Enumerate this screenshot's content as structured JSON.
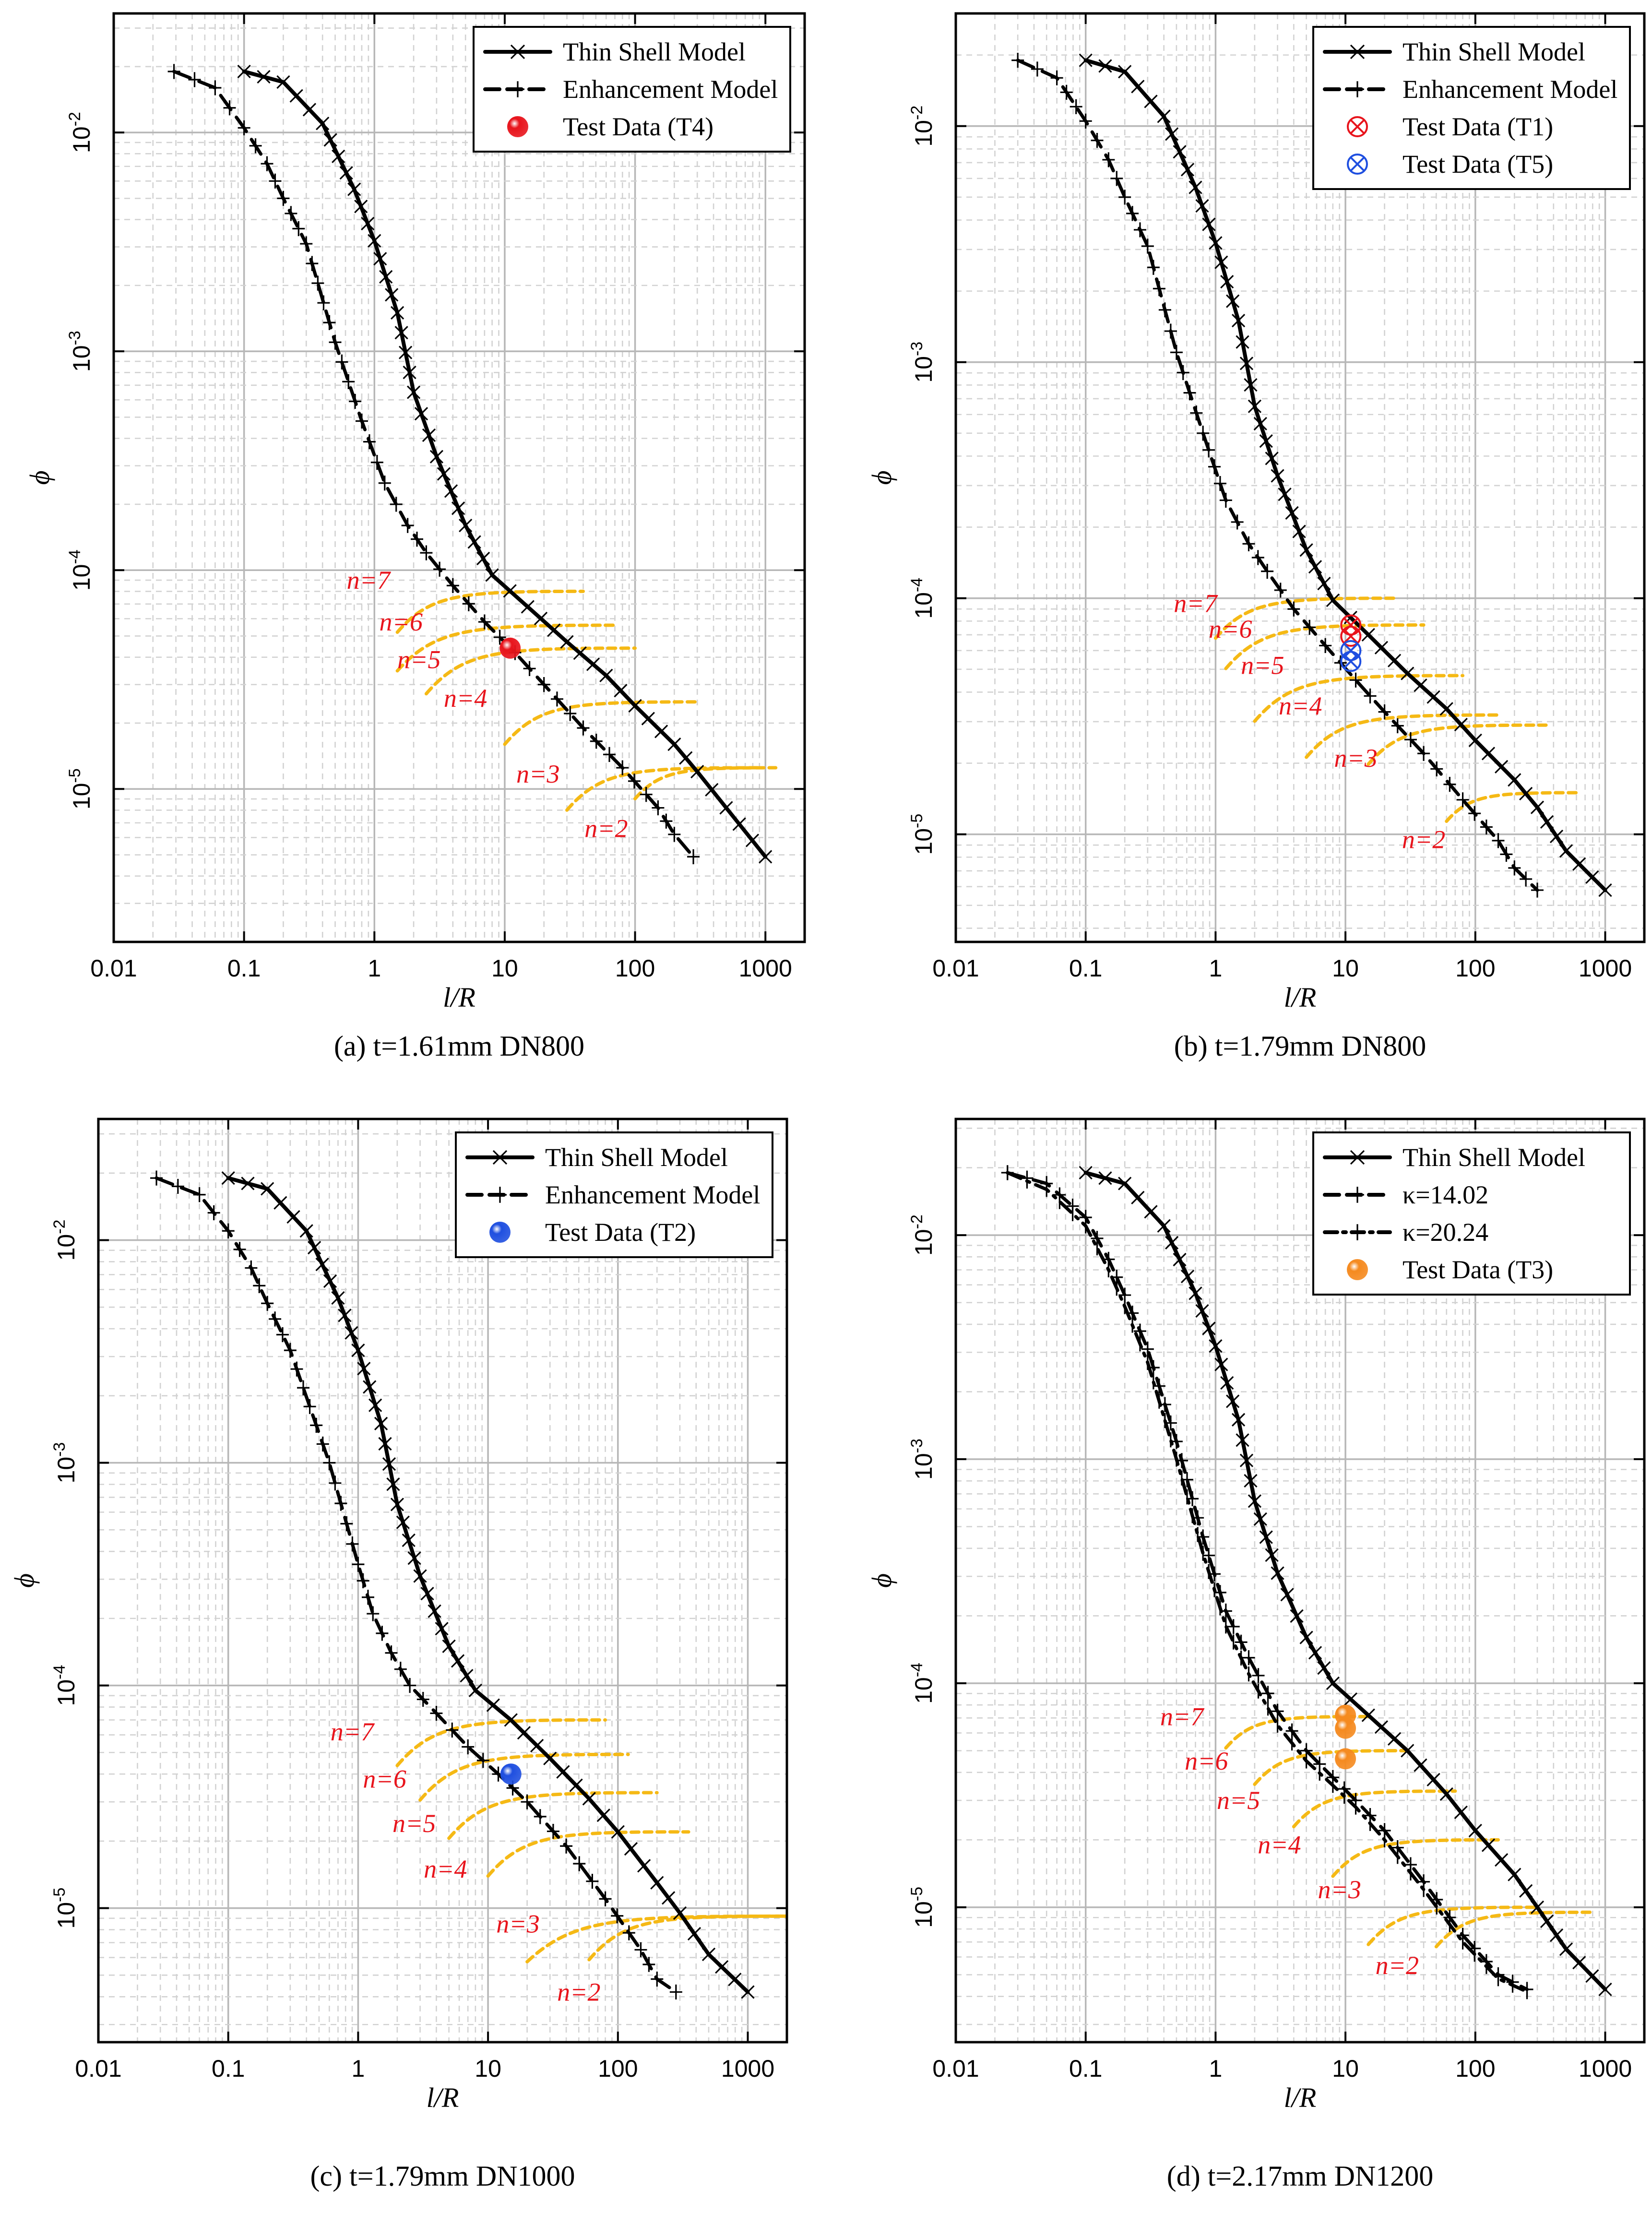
{
  "chart_data": [
    {
      "type": "line",
      "scale": "log-log",
      "caption": "(a) t=1.61mm DN800",
      "xlabel": "l/R",
      "ylabel": "ϕ",
      "xlim": [
        0.01,
        2000
      ],
      "ylim": [
        2e-06,
        0.035
      ],
      "x_ticks": [
        0.01,
        0.1,
        1,
        10,
        100,
        1000
      ],
      "x_tick_labels": [
        "0.01",
        "0.1",
        "1",
        "10",
        "100",
        "1000"
      ],
      "y_ticks": [
        1e-05,
        0.0001,
        0.001,
        0.01
      ],
      "y_tick_labels": [
        {
          "base": "10",
          "exp": "-5"
        },
        {
          "base": "10",
          "exp": "-4"
        },
        {
          "base": "10",
          "exp": "-3"
        },
        {
          "base": "10",
          "exp": "-2"
        }
      ],
      "grid": true,
      "legend": {
        "position": "top-right",
        "entries": [
          {
            "label": "Thin Shell Model",
            "kind": "solid-x"
          },
          {
            "label": "Enhancement Model",
            "kind": "dash-plus"
          },
          {
            "label": "Test Data (T4)",
            "kind": "ball",
            "color": "#e8141c"
          }
        ]
      },
      "series": [
        {
          "name": "Thin Shell Model",
          "kind": "solid-x",
          "x": [
            0.1,
            0.2,
            0.4,
            0.7,
            1.0,
            1.5,
            2.0,
            3.0,
            5.0,
            8.0,
            15,
            30,
            60,
            100,
            200,
            300,
            500,
            1000
          ],
          "y": [
            0.019,
            0.017,
            0.011,
            0.0055,
            0.0032,
            0.0015,
            0.00065,
            0.00033,
            0.00016,
            9.5e-05,
            6.8e-05,
            4.7e-05,
            3.3e-05,
            2.4e-05,
            1.6e-05,
            1.2e-05,
            8.2e-06,
            4.9e-06
          ]
        },
        {
          "name": "Enhancement Model",
          "kind": "dash-plus",
          "x": [
            0.029,
            0.06,
            0.1,
            0.15,
            0.2,
            0.3,
            0.5,
            0.8,
            1.2,
            1.8,
            2.5,
            4,
            7,
            12,
            20,
            40,
            80,
            150,
            200,
            280
          ],
          "y": [
            0.019,
            0.016,
            0.0105,
            0.0072,
            0.005,
            0.0031,
            0.0011,
            0.00048,
            0.00025,
            0.00016,
            0.00012,
            8.5e-05,
            5.8e-05,
            4.2e-05,
            3e-05,
            1.9e-05,
            1.25e-05,
            8.2e-06,
            6.2e-06,
            4.9e-06
          ]
        }
      ],
      "test_points": [
        {
          "label": "T4",
          "x": 11,
          "y": 4.4e-05,
          "color": "#e8141c"
        }
      ],
      "mode_lines": [
        {
          "label": "n=7",
          "y": 8e-05,
          "x_start": 1.5,
          "x_end": 40,
          "label_x": 0.9,
          "label_y": 9e-05
        },
        {
          "label": "n=6",
          "y": 5.6e-05,
          "x_start": 1.5,
          "x_end": 70,
          "label_x": 1.6,
          "label_y": 5.8e-05
        },
        {
          "label": "n=5",
          "y": 4.4e-05,
          "x_start": 2.5,
          "x_end": 100,
          "label_x": 2.2,
          "label_y": 3.9e-05
        },
        {
          "label": "n=4",
          "y": 2.5e-05,
          "x_start": 10,
          "x_end": 300,
          "label_x": 5,
          "label_y": 2.6e-05
        },
        {
          "label": "n=3",
          "y": 1.25e-05,
          "x_start": 30,
          "x_end": 900,
          "label_x": 18,
          "label_y": 1.17e-05
        },
        {
          "label": "n=2",
          "y": 1.25e-05,
          "x_start": 100,
          "x_end": 1200,
          "label_x": 60,
          "label_y": 6.6e-06
        }
      ]
    },
    {
      "type": "line",
      "scale": "log-log",
      "caption": "(b) t=1.79mm DN800",
      "xlabel": "l/R",
      "ylabel": "ϕ",
      "xlim": [
        0.01,
        2000
      ],
      "ylim": [
        3.5e-06,
        0.03
      ],
      "x_ticks": [
        0.01,
        0.1,
        1,
        10,
        100,
        1000
      ],
      "x_tick_labels": [
        "0.01",
        "0.1",
        "1",
        "10",
        "100",
        "1000"
      ],
      "y_ticks": [
        1e-05,
        0.0001,
        0.001,
        0.01
      ],
      "y_tick_labels": [
        {
          "base": "10",
          "exp": "-5"
        },
        {
          "base": "10",
          "exp": "-4"
        },
        {
          "base": "10",
          "exp": "-3"
        },
        {
          "base": "10",
          "exp": "-2"
        }
      ],
      "grid": true,
      "legend": {
        "position": "top-right",
        "entries": [
          {
            "label": "Thin Shell Model",
            "kind": "solid-x"
          },
          {
            "label": "Enhancement Model",
            "kind": "dash-plus"
          },
          {
            "label": "Test Data (T1)",
            "kind": "crossed-circle",
            "color": "#e8141c"
          },
          {
            "label": "Test Data (T5)",
            "kind": "crossed-circle",
            "color": "#1f4fe0"
          }
        ]
      },
      "series": [
        {
          "name": "Thin Shell Model",
          "kind": "solid-x",
          "x": [
            0.1,
            0.2,
            0.4,
            0.7,
            1.0,
            1.5,
            2.0,
            3.0,
            5.0,
            8.0,
            15,
            30,
            60,
            100,
            200,
            300,
            500,
            1000
          ],
          "y": [
            0.019,
            0.017,
            0.011,
            0.0055,
            0.0032,
            0.0015,
            0.00065,
            0.00033,
            0.00016,
            9.8e-05,
            7e-05,
            4.8e-05,
            3.4e-05,
            2.5e-05,
            1.7e-05,
            1.3e-05,
            8.5e-06,
            5.8e-06
          ]
        },
        {
          "name": "Enhancement Model",
          "kind": "dash-plus",
          "x": [
            0.03,
            0.06,
            0.1,
            0.15,
            0.2,
            0.3,
            0.5,
            0.8,
            1.2,
            1.8,
            2.5,
            4,
            7,
            12,
            20,
            40,
            80,
            150,
            200,
            300
          ],
          "y": [
            0.019,
            0.016,
            0.0105,
            0.0072,
            0.005,
            0.0031,
            0.0011,
            0.0005,
            0.00026,
            0.00017,
            0.00013,
            9e-05,
            6.3e-05,
            4.5e-05,
            3.3e-05,
            2.2e-05,
            1.4e-05,
            9.4e-06,
            7.2e-06,
            5.8e-06
          ]
        }
      ],
      "test_points": [
        {
          "label": "T1",
          "x": 11,
          "y": 7.7e-05,
          "color": "#e8141c"
        },
        {
          "label": "T1",
          "x": 11,
          "y": 6.9e-05,
          "color": "#e8141c"
        },
        {
          "label": "T5",
          "x": 11,
          "y": 6e-05,
          "color": "#1f4fe0"
        },
        {
          "label": "T5",
          "x": 11,
          "y": 5.4e-05,
          "color": "#1f4fe0"
        }
      ],
      "mode_lines": [
        {
          "label": "n=7",
          "y": 0.0001,
          "x_start": 1.0,
          "x_end": 25,
          "label_x": 0.7,
          "label_y": 9.5e-05
        },
        {
          "label": "n=6",
          "y": 7.7e-05,
          "x_start": 1.2,
          "x_end": 40,
          "label_x": 1.3,
          "label_y": 7.4e-05
        },
        {
          "label": "n=5",
          "y": 4.7e-05,
          "x_start": 2.0,
          "x_end": 80,
          "label_x": 2.3,
          "label_y": 5.2e-05
        },
        {
          "label": "n=4",
          "y": 3.2e-05,
          "x_start": 5,
          "x_end": 150,
          "label_x": 4.5,
          "label_y": 3.5e-05
        },
        {
          "label": "n=3",
          "y": 2.9e-05,
          "x_start": 15,
          "x_end": 350,
          "label_x": 12,
          "label_y": 2.1e-05
        },
        {
          "label": "n=2",
          "y": 1.5e-05,
          "x_start": 60,
          "x_end": 600,
          "label_x": 40,
          "label_y": 9.5e-06
        }
      ]
    },
    {
      "type": "line",
      "scale": "log-log",
      "caption": "(c) t=1.79mm DN1000",
      "xlabel": "l/R",
      "ylabel": "ϕ",
      "xlim": [
        0.01,
        2000
      ],
      "ylim": [
        2.5e-06,
        0.035
      ],
      "x_ticks": [
        0.01,
        0.1,
        1,
        10,
        100,
        1000
      ],
      "x_tick_labels": [
        "0.01",
        "0.1",
        "1",
        "10",
        "100",
        "1000"
      ],
      "y_ticks": [
        1e-05,
        0.0001,
        0.001,
        0.01
      ],
      "y_tick_labels": [
        {
          "base": "10",
          "exp": "-5"
        },
        {
          "base": "10",
          "exp": "-4"
        },
        {
          "base": "10",
          "exp": "-3"
        },
        {
          "base": "10",
          "exp": "-2"
        }
      ],
      "grid": true,
      "legend": {
        "position": "top-right",
        "entries": [
          {
            "label": "Thin Shell Model",
            "kind": "solid-x"
          },
          {
            "label": "Enhancement Model",
            "kind": "dash-plus"
          },
          {
            "label": "Test Data (T2)",
            "kind": "ball",
            "color": "#1f4fe0"
          }
        ]
      },
      "series": [
        {
          "name": "Thin Shell Model",
          "kind": "solid-x",
          "x": [
            0.1,
            0.2,
            0.4,
            0.7,
            1.0,
            1.5,
            2.0,
            3.0,
            5.0,
            8.0,
            15,
            30,
            60,
            100,
            200,
            300,
            500,
            1000
          ],
          "y": [
            0.019,
            0.017,
            0.011,
            0.0055,
            0.0032,
            0.0015,
            0.00065,
            0.00031,
            0.00015,
            9.5e-05,
            7e-05,
            4.7e-05,
            3.1e-05,
            2.2e-05,
            1.3e-05,
            9.5e-06,
            6.2e-06,
            4.2e-06
          ]
        },
        {
          "name": "Enhancement Model",
          "kind": "dash-plus",
          "x": [
            0.028,
            0.06,
            0.1,
            0.15,
            0.2,
            0.3,
            0.6,
            1.0,
            1.3,
            1.8,
            2.5,
            4,
            7,
            12,
            20,
            40,
            80,
            150,
            200,
            280
          ],
          "y": [
            0.019,
            0.016,
            0.011,
            0.0075,
            0.0052,
            0.0032,
            0.001,
            0.00035,
            0.00021,
            0.00014,
            0.0001,
            7.5e-05,
            5.3e-05,
            4e-05,
            3e-05,
            1.9e-05,
            1.1e-05,
            6.5e-06,
            4.8e-06,
            4.2e-06
          ]
        }
      ],
      "test_points": [
        {
          "label": "T2",
          "x": 15,
          "y": 4e-05,
          "color": "#1f4fe0"
        }
      ],
      "mode_lines": [
        {
          "label": "n=7",
          "y": 7e-05,
          "x_start": 2.0,
          "x_end": 80,
          "label_x": 0.9,
          "label_y": 6.2e-05
        },
        {
          "label": "n=6",
          "y": 4.9e-05,
          "x_start": 3.0,
          "x_end": 120,
          "label_x": 1.6,
          "label_y": 3.8e-05
        },
        {
          "label": "n=5",
          "y": 3.3e-05,
          "x_start": 5,
          "x_end": 200,
          "label_x": 2.7,
          "label_y": 2.4e-05
        },
        {
          "label": "n=4",
          "y": 2.2e-05,
          "x_start": 10,
          "x_end": 350,
          "label_x": 4.7,
          "label_y": 1.5e-05
        },
        {
          "label": "n=3",
          "y": 9.2e-06,
          "x_start": 20,
          "x_end": 2000,
          "label_x": 17,
          "label_y": 8.5e-06
        },
        {
          "label": "n=2",
          "y": 9.2e-06,
          "x_start": 60,
          "x_end": 2000,
          "label_x": 50,
          "label_y": 4.2e-06
        }
      ]
    },
    {
      "type": "line",
      "scale": "log-log",
      "caption": "(d) t=2.17mm DN1200",
      "xlabel": "l/R",
      "ylabel": "ϕ",
      "xlim": [
        0.01,
        2000
      ],
      "ylim": [
        2.5e-06,
        0.033
      ],
      "x_ticks": [
        0.01,
        0.1,
        1,
        10,
        100,
        1000
      ],
      "x_tick_labels": [
        "0.01",
        "0.1",
        "1",
        "10",
        "100",
        "1000"
      ],
      "y_ticks": [
        1e-05,
        0.0001,
        0.001,
        0.01
      ],
      "y_tick_labels": [
        {
          "base": "10",
          "exp": "-5"
        },
        {
          "base": "10",
          "exp": "-4"
        },
        {
          "base": "10",
          "exp": "-3"
        },
        {
          "base": "10",
          "exp": "-2"
        }
      ],
      "grid": true,
      "legend": {
        "position": "top-right",
        "entries": [
          {
            "label": "Thin Shell Model",
            "kind": "solid-x"
          },
          {
            "label": "κ=14.02",
            "kind": "dash-plus"
          },
          {
            "label": "κ=20.24",
            "kind": "dashdot-bar"
          },
          {
            "label": "Test Data (T3)",
            "kind": "ball",
            "color": "#f58a1f"
          }
        ]
      },
      "series": [
        {
          "name": "Thin Shell Model",
          "kind": "solid-x",
          "x": [
            0.1,
            0.2,
            0.4,
            0.7,
            1.0,
            1.5,
            2.0,
            3.0,
            5.0,
            8.0,
            15,
            30,
            60,
            100,
            200,
            300,
            500,
            1000
          ],
          "y": [
            0.019,
            0.017,
            0.011,
            0.0055,
            0.0032,
            0.0015,
            0.00065,
            0.00031,
            0.00016,
            0.0001,
            7.2e-05,
            5e-05,
            3.2e-05,
            2.2e-05,
            1.4e-05,
            1e-05,
            6.5e-06,
            4.3e-06
          ]
        },
        {
          "name": "κ=14.02",
          "kind": "dash-plus",
          "x": [
            0.025,
            0.05,
            0.1,
            0.15,
            0.2,
            0.3,
            0.5,
            0.8,
            1.2,
            1.8,
            3,
            5,
            8,
            12,
            20,
            40,
            80,
            150,
            250
          ],
          "y": [
            0.019,
            0.017,
            0.012,
            0.0078,
            0.0054,
            0.0031,
            0.0012,
            0.00045,
            0.00021,
            0.00013,
            7.5e-05,
            5e-05,
            3.8e-05,
            3e-05,
            2.2e-05,
            1.3e-05,
            7.5e-06,
            5e-06,
            4.3e-06
          ]
        },
        {
          "name": "κ=20.24",
          "kind": "dashdot-bar",
          "x": [
            0.025,
            0.05,
            0.1,
            0.15,
            0.2,
            0.3,
            0.5,
            0.8,
            1.2,
            1.8,
            3,
            5,
            8,
            12,
            20,
            40,
            80,
            150,
            250
          ],
          "y": [
            0.019,
            0.016,
            0.011,
            0.007,
            0.0048,
            0.0027,
            0.001,
            0.00038,
            0.00018,
            0.00011,
            6.5e-05,
            4.5e-05,
            3.5e-05,
            2.8e-05,
            2e-05,
            1.2e-05,
            7e-06,
            4.8e-06,
            4.2e-06
          ]
        }
      ],
      "test_points": [
        {
          "label": "T3",
          "x": 10,
          "y": 7.2e-05,
          "color": "#f58a1f"
        },
        {
          "label": "T3",
          "x": 10,
          "y": 6.3e-05,
          "color": "#f58a1f"
        },
        {
          "label": "T3",
          "x": 10,
          "y": 4.6e-05,
          "color": "#f58a1f"
        }
      ],
      "mode_lines": [
        {
          "label": "n=7",
          "y": 7.1e-05,
          "x_start": 1.2,
          "x_end": 15,
          "label_x": 0.55,
          "label_y": 7.1e-05
        },
        {
          "label": "n=6",
          "y": 5e-05,
          "x_start": 2.0,
          "x_end": 30,
          "label_x": 0.85,
          "label_y": 4.5e-05
        },
        {
          "label": "n=5",
          "y": 3.3e-05,
          "x_start": 4,
          "x_end": 70,
          "label_x": 1.5,
          "label_y": 3e-05
        },
        {
          "label": "n=4",
          "y": 2e-05,
          "x_start": 8,
          "x_end": 150,
          "label_x": 3.1,
          "label_y": 1.9e-05
        },
        {
          "label": "n=3",
          "y": 1e-05,
          "x_start": 15,
          "x_end": 300,
          "label_x": 9,
          "label_y": 1.2e-05
        },
        {
          "label": "n=2",
          "y": 9.5e-06,
          "x_start": 50,
          "x_end": 800,
          "label_x": 25,
          "label_y": 5.5e-06
        }
      ]
    }
  ]
}
